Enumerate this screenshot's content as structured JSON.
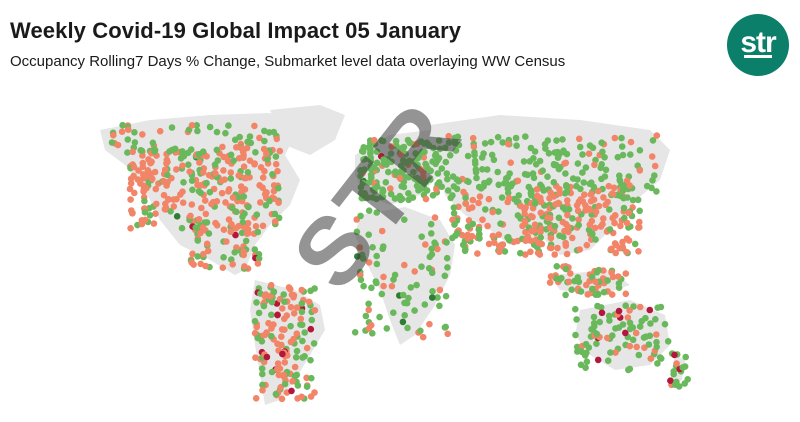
{
  "header": {
    "title": "Weekly Covid-19 Global Impact 05 January",
    "subtitle": "Occupancy Rolling7 Days % Change, Submarket level data overlaying WW Census"
  },
  "logo": {
    "text": "str",
    "color": "#0b7f6a"
  },
  "watermark": {
    "text": "STR"
  },
  "map": {
    "land_color": "#e6e6e6",
    "colors": {
      "decline": "#f28468",
      "growth": "#6ab85c",
      "severe": "#b3173b",
      "strong_growth": "#2e7d32"
    }
  }
}
